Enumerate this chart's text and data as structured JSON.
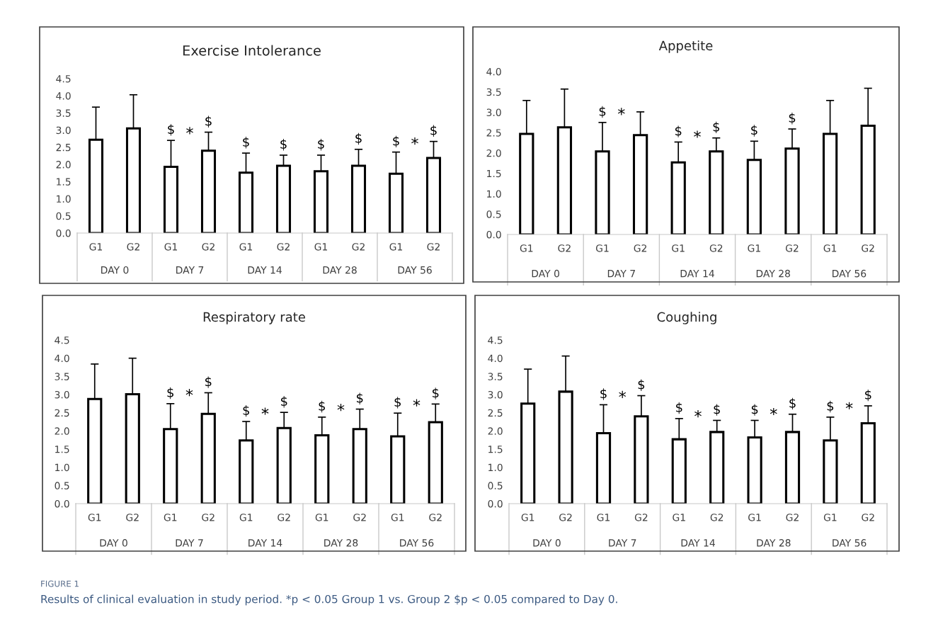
{
  "chart_data": [
    {
      "type": "bar",
      "title": "Exercise Intolerance",
      "categories": [
        "G1",
        "G2",
        "G1",
        "G2",
        "G1",
        "G2",
        "G1",
        "G2",
        "G1",
        "G2"
      ],
      "values": [
        2.72,
        3.05,
        1.93,
        2.4,
        1.76,
        1.96,
        1.8,
        1.96,
        1.73,
        2.19
      ],
      "errors": [
        [
          2.72,
          3.67
        ],
        [
          3.05,
          4.03
        ],
        [
          1.93,
          2.7
        ],
        [
          2.4,
          2.94
        ],
        [
          1.76,
          2.33
        ],
        [
          1.96,
          2.27
        ],
        [
          1.8,
          2.27
        ],
        [
          1.96,
          2.44
        ],
        [
          1.73,
          2.36
        ],
        [
          2.19,
          2.67
        ]
      ],
      "value_labels": [
        null,
        null,
        "$",
        "$",
        "$",
        "$",
        "$",
        "$",
        "$",
        "$"
      ],
      "color": "#ffffff",
      "ylim": [
        0,
        4.5
      ],
      "yticks": [
        {
          "value": 0,
          "label": "0.0"
        },
        {
          "value": 0.5,
          "label": "0.5"
        },
        {
          "value": 1,
          "label": "1.0"
        },
        {
          "value": 1.5,
          "label": "1.5"
        },
        {
          "value": 2,
          "label": "2.0"
        },
        {
          "value": 2.5,
          "label": "2.5"
        },
        {
          "value": 3,
          "label": "3.0"
        },
        {
          "value": 3.5,
          "label": "3.5"
        },
        {
          "value": 4,
          "label": "4.0"
        },
        {
          "value": 4.5,
          "label": "4.5"
        }
      ],
      "grid": false,
      "legend": false,
      "annotations": [
        "DAY 0",
        "DAY 7",
        "*",
        "DAY 14",
        "DAY 28",
        "DAY 56",
        "*"
      ]
    },
    {
      "type": "bar",
      "title": "Appetite",
      "categories": [
        "G1",
        "G2",
        "G1",
        "G2",
        "G1",
        "G2",
        "G1",
        "G2",
        "G1",
        "G2"
      ],
      "values": [
        2.47,
        2.63,
        2.04,
        2.44,
        1.77,
        2.04,
        1.83,
        2.11,
        2.47,
        2.67
      ],
      "errors": [
        [
          2.47,
          3.29
        ],
        [
          2.63,
          3.57
        ],
        [
          2.04,
          2.75
        ],
        [
          2.44,
          3.01
        ],
        [
          1.77,
          2.27
        ],
        [
          2.04,
          2.37
        ],
        [
          1.83,
          2.29
        ],
        [
          2.11,
          2.59
        ],
        [
          2.47,
          3.29
        ],
        [
          2.67,
          3.59
        ]
      ],
      "value_labels": [
        null,
        null,
        "$",
        null,
        "$",
        "$",
        "$",
        "$",
        null,
        null
      ],
      "color": "#ffffff",
      "ylim": [
        0,
        4.0
      ],
      "yticks": [
        {
          "value": 0,
          "label": "0.0"
        },
        {
          "value": 0.5,
          "label": "0.5"
        },
        {
          "value": 1,
          "label": "1.0"
        },
        {
          "value": 1.5,
          "label": "1.5"
        },
        {
          "value": 2,
          "label": "2.0"
        },
        {
          "value": 2.5,
          "label": "2.5"
        },
        {
          "value": 3,
          "label": "3.0"
        },
        {
          "value": 3.5,
          "label": "3.5"
        },
        {
          "value": 4,
          "label": "4.0"
        }
      ],
      "grid": false,
      "legend": false,
      "annotations": [
        "DAY 0",
        "DAY 7",
        "*",
        "DAY 14",
        "*",
        "DAY 28",
        "DAY 56"
      ]
    },
    {
      "type": "bar",
      "title": "Respiratory rate",
      "categories": [
        "G1",
        "G2",
        "G1",
        "G2",
        "G1",
        "G2",
        "G1",
        "G2",
        "G1",
        "G2"
      ],
      "values": [
        2.88,
        3.01,
        2.05,
        2.47,
        1.74,
        2.08,
        1.88,
        2.05,
        1.85,
        2.24
      ],
      "errors": [
        [
          2.88,
          3.84
        ],
        [
          3.01,
          4.0
        ],
        [
          2.05,
          2.75
        ],
        [
          2.47,
          3.05
        ],
        [
          1.74,
          2.26
        ],
        [
          2.08,
          2.51
        ],
        [
          1.88,
          2.38
        ],
        [
          2.05,
          2.6
        ],
        [
          1.85,
          2.49
        ],
        [
          2.24,
          2.74
        ]
      ],
      "value_labels": [
        null,
        null,
        "$",
        "$",
        "$",
        "$",
        "$",
        "$",
        "$",
        "$"
      ],
      "color": "#ffffff",
      "ylim": [
        0,
        4.5
      ],
      "yticks": [
        {
          "value": 0,
          "label": "0.0"
        },
        {
          "value": 0.5,
          "label": "0.5"
        },
        {
          "value": 1,
          "label": "1.0"
        },
        {
          "value": 1.5,
          "label": "1.5"
        },
        {
          "value": 2,
          "label": "2.0"
        },
        {
          "value": 2.5,
          "label": "2.5"
        },
        {
          "value": 3,
          "label": "3.0"
        },
        {
          "value": 3.5,
          "label": "3.5"
        },
        {
          "value": 4,
          "label": "4.0"
        },
        {
          "value": 4.5,
          "label": "4.5"
        }
      ],
      "grid": false,
      "legend": false,
      "annotations": [
        "DAY 0",
        "DAY 7",
        "*",
        "DAY 14",
        "*",
        "DAY 28",
        "*",
        "DAY 56",
        "*"
      ]
    },
    {
      "type": "bar",
      "title": "Coughing",
      "categories": [
        "G1",
        "G2",
        "G1",
        "G2",
        "G1",
        "G2",
        "G1",
        "G2",
        "G1",
        "G2"
      ],
      "values": [
        2.75,
        3.08,
        1.94,
        2.4,
        1.77,
        1.97,
        1.82,
        1.97,
        1.74,
        2.21
      ],
      "errors": [
        [
          2.75,
          3.7
        ],
        [
          3.08,
          4.06
        ],
        [
          1.94,
          2.72
        ],
        [
          2.4,
          2.97
        ],
        [
          1.77,
          2.34
        ],
        [
          1.97,
          2.29
        ],
        [
          1.82,
          2.29
        ],
        [
          1.97,
          2.46
        ],
        [
          1.74,
          2.38
        ],
        [
          2.21,
          2.69
        ]
      ],
      "value_labels": [
        null,
        null,
        "$",
        "$",
        "$",
        "$",
        "$",
        "$",
        "$",
        "$"
      ],
      "color": "#ffffff",
      "ylim": [
        0,
        4.5
      ],
      "yticks": [
        {
          "value": 0,
          "label": "0.0"
        },
        {
          "value": 0.5,
          "label": "0.5"
        },
        {
          "value": 1,
          "label": "1.0"
        },
        {
          "value": 1.5,
          "label": "1.5"
        },
        {
          "value": 2,
          "label": "2.0"
        },
        {
          "value": 2.5,
          "label": "2.5"
        },
        {
          "value": 3,
          "label": "3.0"
        },
        {
          "value": 3.5,
          "label": "3.5"
        },
        {
          "value": 4,
          "label": "4.0"
        },
        {
          "value": 4.5,
          "label": "4.5"
        }
      ],
      "grid": false,
      "legend": false,
      "annotations": [
        "DAY 0",
        "DAY 7",
        "*",
        "DAY 14",
        "*",
        "DAY 28",
        "*",
        "DAY 56",
        "*"
      ]
    },
    {
      "type": "other",
      "annotations": [
        "FIGURE 1",
        "Results of clinical evaluation in study period. *p < 0.05 Group 1 vs. Group 2 $p < 0.05 compared to Day 0."
      ]
    }
  ]
}
